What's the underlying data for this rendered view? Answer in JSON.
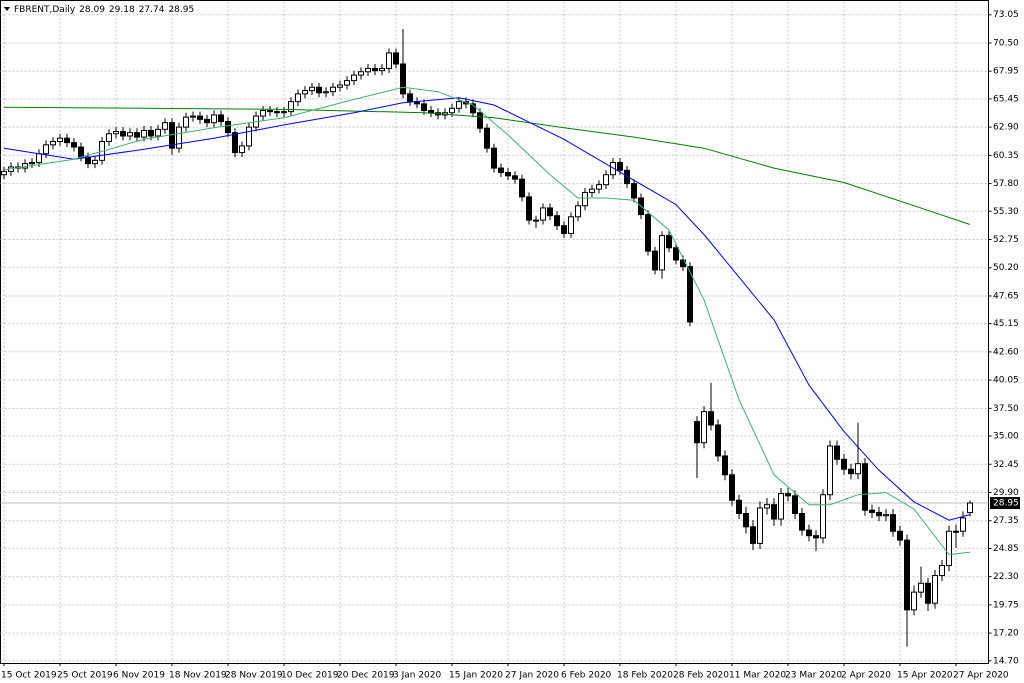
{
  "chart_data": {
    "type": "candlestick",
    "title": "FBRENT,Daily",
    "categories": [
      "15 Oct 2019",
      null,
      null,
      null,
      null,
      null,
      null,
      null,
      "25 Oct 2019",
      null,
      null,
      null,
      null,
      null,
      null,
      null,
      "6 Nov 2019",
      null,
      null,
      null,
      null,
      null,
      null,
      null,
      "18 Nov 2019",
      null,
      null,
      null,
      null,
      null,
      null,
      null,
      "28 Nov 2019",
      null,
      null,
      null,
      null,
      null,
      null,
      null,
      "10 Dec 2019",
      null,
      null,
      null,
      null,
      null,
      null,
      null,
      "20 Dec 2019",
      null,
      null,
      null,
      null,
      null,
      null,
      null,
      "3 Jan 2020",
      null,
      null,
      null,
      null,
      null,
      null,
      null,
      "15 Jan 2020",
      null,
      null,
      null,
      null,
      null,
      null,
      null,
      "27 Jan 2020",
      null,
      null,
      null,
      null,
      null,
      null,
      null,
      "6 Feb 2020",
      null,
      null,
      null,
      null,
      null,
      null,
      null,
      "18 Feb 2020",
      null,
      null,
      null,
      null,
      null,
      null,
      null,
      "28 Feb 2020",
      null,
      null,
      null,
      null,
      null,
      null,
      null,
      "11 Mar 2020",
      null,
      null,
      null,
      null,
      null,
      null,
      null,
      "23 Mar 2020",
      null,
      null,
      null,
      null,
      null,
      null,
      null,
      "2 Apr 2020",
      null,
      null,
      null,
      null,
      null,
      null,
      null,
      "15 Apr 2020",
      null,
      null,
      null,
      null,
      null,
      null,
      null,
      "27 Apr 2020",
      null,
      null
    ],
    "open": [
      58.6,
      58.9,
      59.3,
      59.2,
      59.6,
      59.7,
      60.5,
      61.3,
      61.6,
      61.9,
      61.5,
      61.1,
      60.2,
      59.6,
      59.9,
      61.6,
      62.3,
      62.5,
      62.1,
      62.4,
      62.0,
      62.6,
      62.1,
      62.7,
      63.3,
      61.0,
      62.9,
      63.8,
      63.9,
      63.6,
      63.3,
      64.0,
      63.4,
      62.4,
      60.6,
      61.2,
      62.9,
      63.9,
      64.4,
      64.3,
      64.2,
      64.3,
      65.2,
      65.9,
      66.2,
      66.5,
      66.0,
      66.1,
      66.5,
      66.7,
      67.1,
      67.6,
      67.9,
      68.2,
      68.0,
      68.2,
      69.6,
      68.6,
      65.9,
      65.2,
      65.0,
      64.4,
      64.2,
      64.0,
      64.2,
      64.6,
      65.2,
      65.0,
      64.2,
      62.8,
      61.0,
      59.2,
      58.8,
      58.5,
      58.2,
      56.6,
      54.5,
      54.5,
      55.6,
      54.9,
      54.0,
      53.3,
      54.8,
      55.8,
      57.0,
      57.3,
      57.7,
      58.6,
      59.7,
      59.0,
      57.8,
      56.5,
      55.0,
      51.7,
      50.0,
      53.1,
      52.0,
      50.9,
      50.3,
      36.3,
      34.4,
      37.2,
      36.0,
      33.2,
      31.5,
      29.2,
      28.0,
      26.8,
      25.3,
      28.5,
      28.8,
      27.5,
      29.8,
      29.6,
      28.0,
      26.5,
      26.0,
      25.8,
      29.7,
      34.1,
      32.9,
      32.0,
      31.6,
      32.5,
      28.3,
      28.1,
      27.8,
      27.9,
      26.4,
      25.6,
      19.3,
      20.9,
      21.7,
      19.9,
      22.4,
      23.3,
      26.4,
      26.4,
      28.09
    ],
    "high": [
      59.3,
      59.7,
      59.7,
      60.0,
      60.1,
      60.9,
      61.7,
      62.0,
      62.3,
      62.3,
      61.9,
      61.5,
      60.6,
      60.3,
      62.0,
      62.7,
      62.9,
      62.9,
      62.8,
      62.8,
      63.0,
      63.0,
      63.1,
      63.7,
      63.7,
      63.3,
      64.2,
      64.3,
      64.3,
      64.0,
      64.4,
      64.4,
      63.8,
      62.8,
      61.6,
      63.3,
      64.3,
      64.8,
      64.8,
      64.7,
      64.7,
      65.6,
      66.3,
      66.6,
      66.9,
      66.9,
      66.5,
      66.9,
      67.1,
      67.5,
      68.0,
      68.3,
      68.6,
      68.6,
      68.6,
      70.0,
      70.0,
      71.75,
      66.3,
      65.6,
      65.4,
      64.8,
      64.6,
      64.6,
      65.0,
      65.6,
      65.6,
      65.4,
      64.6,
      63.2,
      61.4,
      59.6,
      59.2,
      58.9,
      58.6,
      57.0,
      54.9,
      56.0,
      56.0,
      55.3,
      54.4,
      55.2,
      56.2,
      57.4,
      57.7,
      58.1,
      59.0,
      60.1,
      60.1,
      59.4,
      58.2,
      56.9,
      55.4,
      52.1,
      53.5,
      53.5,
      52.4,
      51.3,
      50.7,
      36.8,
      37.7,
      39.8,
      36.5,
      33.7,
      32.0,
      29.7,
      28.6,
      27.4,
      29.1,
      29.4,
      29.4,
      30.3,
      30.3,
      30.1,
      28.5,
      27.0,
      26.5,
      30.2,
      34.6,
      34.6,
      33.4,
      32.5,
      36.2,
      33.0,
      28.8,
      28.6,
      28.4,
      28.4,
      26.9,
      26.1,
      21.5,
      23.2,
      22.2,
      22.9,
      23.8,
      26.9,
      27.0,
      28.2,
      29.18
    ],
    "low": [
      58.2,
      58.5,
      58.8,
      58.8,
      59.2,
      59.3,
      60.1,
      60.9,
      61.2,
      61.1,
      60.7,
      59.8,
      59.2,
      59.2,
      59.5,
      61.2,
      61.9,
      61.7,
      61.7,
      61.6,
      61.6,
      61.7,
      61.7,
      62.3,
      60.4,
      60.6,
      62.5,
      63.4,
      63.2,
      62.9,
      62.9,
      63.0,
      62.0,
      60.2,
      60.2,
      60.8,
      62.5,
      63.5,
      63.9,
      63.8,
      63.8,
      63.9,
      64.8,
      65.5,
      65.8,
      65.6,
      65.6,
      65.7,
      66.1,
      66.3,
      66.7,
      67.2,
      67.5,
      67.6,
      67.6,
      67.8,
      68.2,
      65.5,
      64.8,
      64.6,
      64.0,
      63.8,
      63.6,
      63.6,
      63.8,
      64.2,
      64.6,
      63.8,
      62.4,
      60.6,
      58.8,
      58.4,
      58.1,
      57.8,
      56.2,
      54.1,
      53.8,
      54.1,
      54.5,
      53.6,
      52.9,
      52.9,
      54.4,
      55.4,
      56.6,
      56.9,
      57.3,
      58.2,
      58.6,
      57.4,
      56.1,
      54.6,
      51.3,
      49.6,
      49.2,
      51.6,
      50.5,
      49.9,
      44.9,
      31.2,
      33.9,
      35.5,
      32.7,
      31.0,
      28.7,
      27.5,
      26.2,
      24.7,
      24.8,
      27.9,
      26.9,
      26.9,
      29.1,
      27.5,
      26.0,
      25.5,
      24.6,
      25.3,
      29.2,
      32.4,
      31.5,
      31.1,
      31.1,
      27.8,
      27.6,
      27.3,
      27.3,
      25.9,
      25.1,
      15.98,
      18.8,
      20.4,
      19.2,
      19.4,
      21.9,
      22.8,
      24.9,
      25.9,
      27.74
    ],
    "close": [
      58.9,
      59.3,
      59.2,
      59.6,
      59.7,
      60.5,
      61.3,
      61.6,
      61.9,
      61.5,
      61.1,
      60.2,
      59.6,
      59.9,
      61.6,
      62.3,
      62.5,
      62.1,
      62.4,
      62.0,
      62.6,
      62.1,
      62.7,
      63.3,
      61.0,
      62.9,
      63.8,
      63.9,
      63.6,
      63.3,
      64.0,
      63.4,
      62.4,
      60.6,
      61.2,
      62.9,
      63.9,
      64.4,
      64.3,
      64.2,
      64.3,
      65.2,
      65.9,
      66.2,
      66.5,
      66.0,
      66.1,
      66.5,
      66.7,
      67.1,
      67.6,
      67.9,
      68.2,
      68.0,
      68.2,
      69.6,
      68.6,
      65.9,
      65.2,
      65.0,
      64.4,
      64.2,
      64.0,
      64.2,
      64.6,
      65.2,
      65.0,
      64.2,
      62.8,
      61.0,
      59.2,
      58.8,
      58.5,
      58.2,
      56.6,
      54.5,
      54.5,
      55.6,
      54.9,
      54.0,
      53.3,
      54.8,
      55.8,
      57.0,
      57.3,
      57.7,
      58.6,
      59.7,
      59.0,
      57.8,
      56.5,
      55.0,
      51.7,
      50.0,
      53.1,
      52.0,
      50.9,
      50.3,
      45.3,
      34.4,
      37.2,
      36.0,
      33.2,
      31.5,
      29.2,
      28.0,
      26.8,
      25.3,
      28.5,
      28.8,
      27.5,
      29.8,
      29.6,
      28.0,
      26.5,
      26.0,
      25.8,
      29.7,
      34.1,
      32.9,
      32.0,
      31.6,
      32.5,
      28.3,
      28.1,
      27.8,
      27.9,
      26.4,
      25.6,
      19.3,
      20.9,
      21.7,
      19.9,
      22.4,
      23.3,
      26.4,
      26.4,
      27.6,
      28.95
    ],
    "up_color": "#ffffff",
    "down_color": "#000000",
    "lines": [
      {
        "color": "#008000",
        "x": [
          0,
          20,
          40,
          60,
          70,
          80,
          90,
          100,
          110,
          120,
          130,
          138
        ],
        "values": [
          64.7,
          64.6,
          64.5,
          64.2,
          63.75,
          62.85,
          62.0,
          61.0,
          59.2,
          57.9,
          55.8,
          54.1
        ]
      },
      {
        "color": "#0000ff",
        "x": [
          0,
          10,
          20,
          30,
          40,
          50,
          57,
          65,
          70,
          80,
          90,
          96,
          100,
          110,
          115,
          120,
          125,
          130,
          135,
          138
        ],
        "values": [
          61.0,
          60.0,
          60.9,
          61.9,
          63.1,
          64.2,
          65.1,
          65.55,
          64.9,
          61.8,
          58.1,
          55.9,
          53.2,
          45.5,
          39.6,
          35.4,
          31.9,
          29.05,
          27.4,
          27.9
        ]
      },
      {
        "color": "#3cb371",
        "x": [
          0,
          10,
          20,
          30,
          40,
          50,
          57,
          62,
          67,
          72,
          78,
          82,
          86,
          90,
          95,
          100,
          105,
          110,
          115,
          118,
          122,
          126,
          130,
          135,
          138
        ],
        "values": [
          59.05,
          60.0,
          61.8,
          62.85,
          63.75,
          65.4,
          66.5,
          66.1,
          64.9,
          62.2,
          58.6,
          56.5,
          56.5,
          56.3,
          53.6,
          47.3,
          38.3,
          31.5,
          28.8,
          28.8,
          29.7,
          29.9,
          28.4,
          24.3,
          24.5
        ]
      }
    ],
    "ylim": [
      14.5,
      74.2
    ],
    "yticks": [
      {
        "value": 14.7,
        "label": "14.70"
      },
      {
        "value": 17.2,
        "label": "17.20"
      },
      19.75,
      {
        "value": 22.3,
        "label": "22.30"
      },
      24.85,
      27.35,
      {
        "value": 29.9,
        "label": "29.90"
      },
      32.45,
      {
        "value": 35,
        "label": "35.00"
      },
      {
        "value": 37.5,
        "label": "37.50"
      },
      40.05,
      {
        "value": 42.6,
        "label": "42.60"
      },
      45.15,
      47.65,
      {
        "value": 50.2,
        "label": "50.20"
      },
      52.75,
      {
        "value": 55.3,
        "label": "55.30"
      },
      {
        "value": 57.8,
        "label": "57.80"
      },
      60.35,
      {
        "value": 62.9,
        "label": "62.90"
      },
      65.45,
      67.95,
      {
        "value": 70.5,
        "label": "70.50"
      },
      73.05
    ],
    "grid": true
  }
}
